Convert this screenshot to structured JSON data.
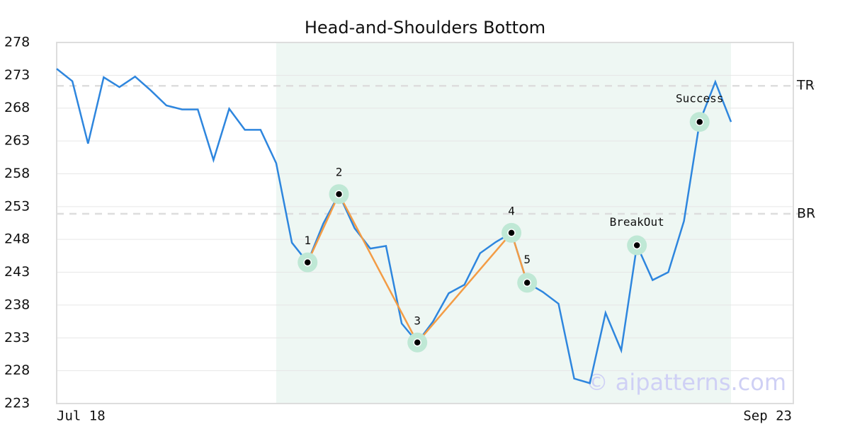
{
  "chart_data": {
    "type": "line",
    "title": "Head-and-Shoulders Bottom",
    "categories": [
      "Jul 18",
      null,
      null,
      null,
      null,
      null,
      null,
      null,
      null,
      null,
      null,
      null,
      null,
      null,
      null,
      null,
      null,
      null,
      null,
      null,
      null,
      null,
      null,
      null,
      null,
      null,
      null,
      null,
      null,
      null,
      null,
      null,
      null,
      null,
      null,
      null,
      null,
      null,
      null,
      null,
      null,
      null,
      null,
      null,
      null,
      null,
      null,
      "Sep 23"
    ],
    "series": [
      {
        "color": "#2e86de",
        "values": [
          274.0,
          272.1,
          262.6,
          272.7,
          271.2,
          272.8,
          270.7,
          268.4,
          267.8,
          267.8,
          260.1,
          267.9,
          264.7,
          264.7,
          259.6,
          247.5,
          244.5,
          250.4,
          254.9,
          249.7,
          246.6,
          247.0,
          235.2,
          232.3,
          235.5,
          239.8,
          241.1,
          245.9,
          247.6,
          249.0,
          241.4,
          240.0,
          238.2,
          226.8,
          226.1,
          236.8,
          231.1,
          247.1,
          241.8,
          243.0,
          250.8,
          265.9,
          272.0,
          265.9,
          null,
          null,
          null,
          null
        ]
      }
    ],
    "ylim": [
      223,
      278
    ],
    "yticks": [
      223,
      228,
      233,
      238,
      243,
      248,
      253,
      258,
      263,
      268,
      273,
      278
    ],
    "grid": true,
    "highlight_range": [
      14,
      43
    ],
    "levels": [
      {
        "name": "TR",
        "value": 271.4
      },
      {
        "name": "BR",
        "value": 251.9
      }
    ],
    "pattern_color": "#f39c45",
    "pattern_points": [
      {
        "index": 16,
        "label": "1"
      },
      {
        "index": 18,
        "label": "2"
      },
      {
        "index": 23,
        "label": "3"
      },
      {
        "index": 29,
        "label": "4"
      },
      {
        "index": 30,
        "label": "5"
      }
    ],
    "annotations": [
      {
        "index": 37,
        "label": "BreakOut"
      },
      {
        "index": 41,
        "label": "Success"
      }
    ],
    "watermark": "© aipatterns.com"
  }
}
